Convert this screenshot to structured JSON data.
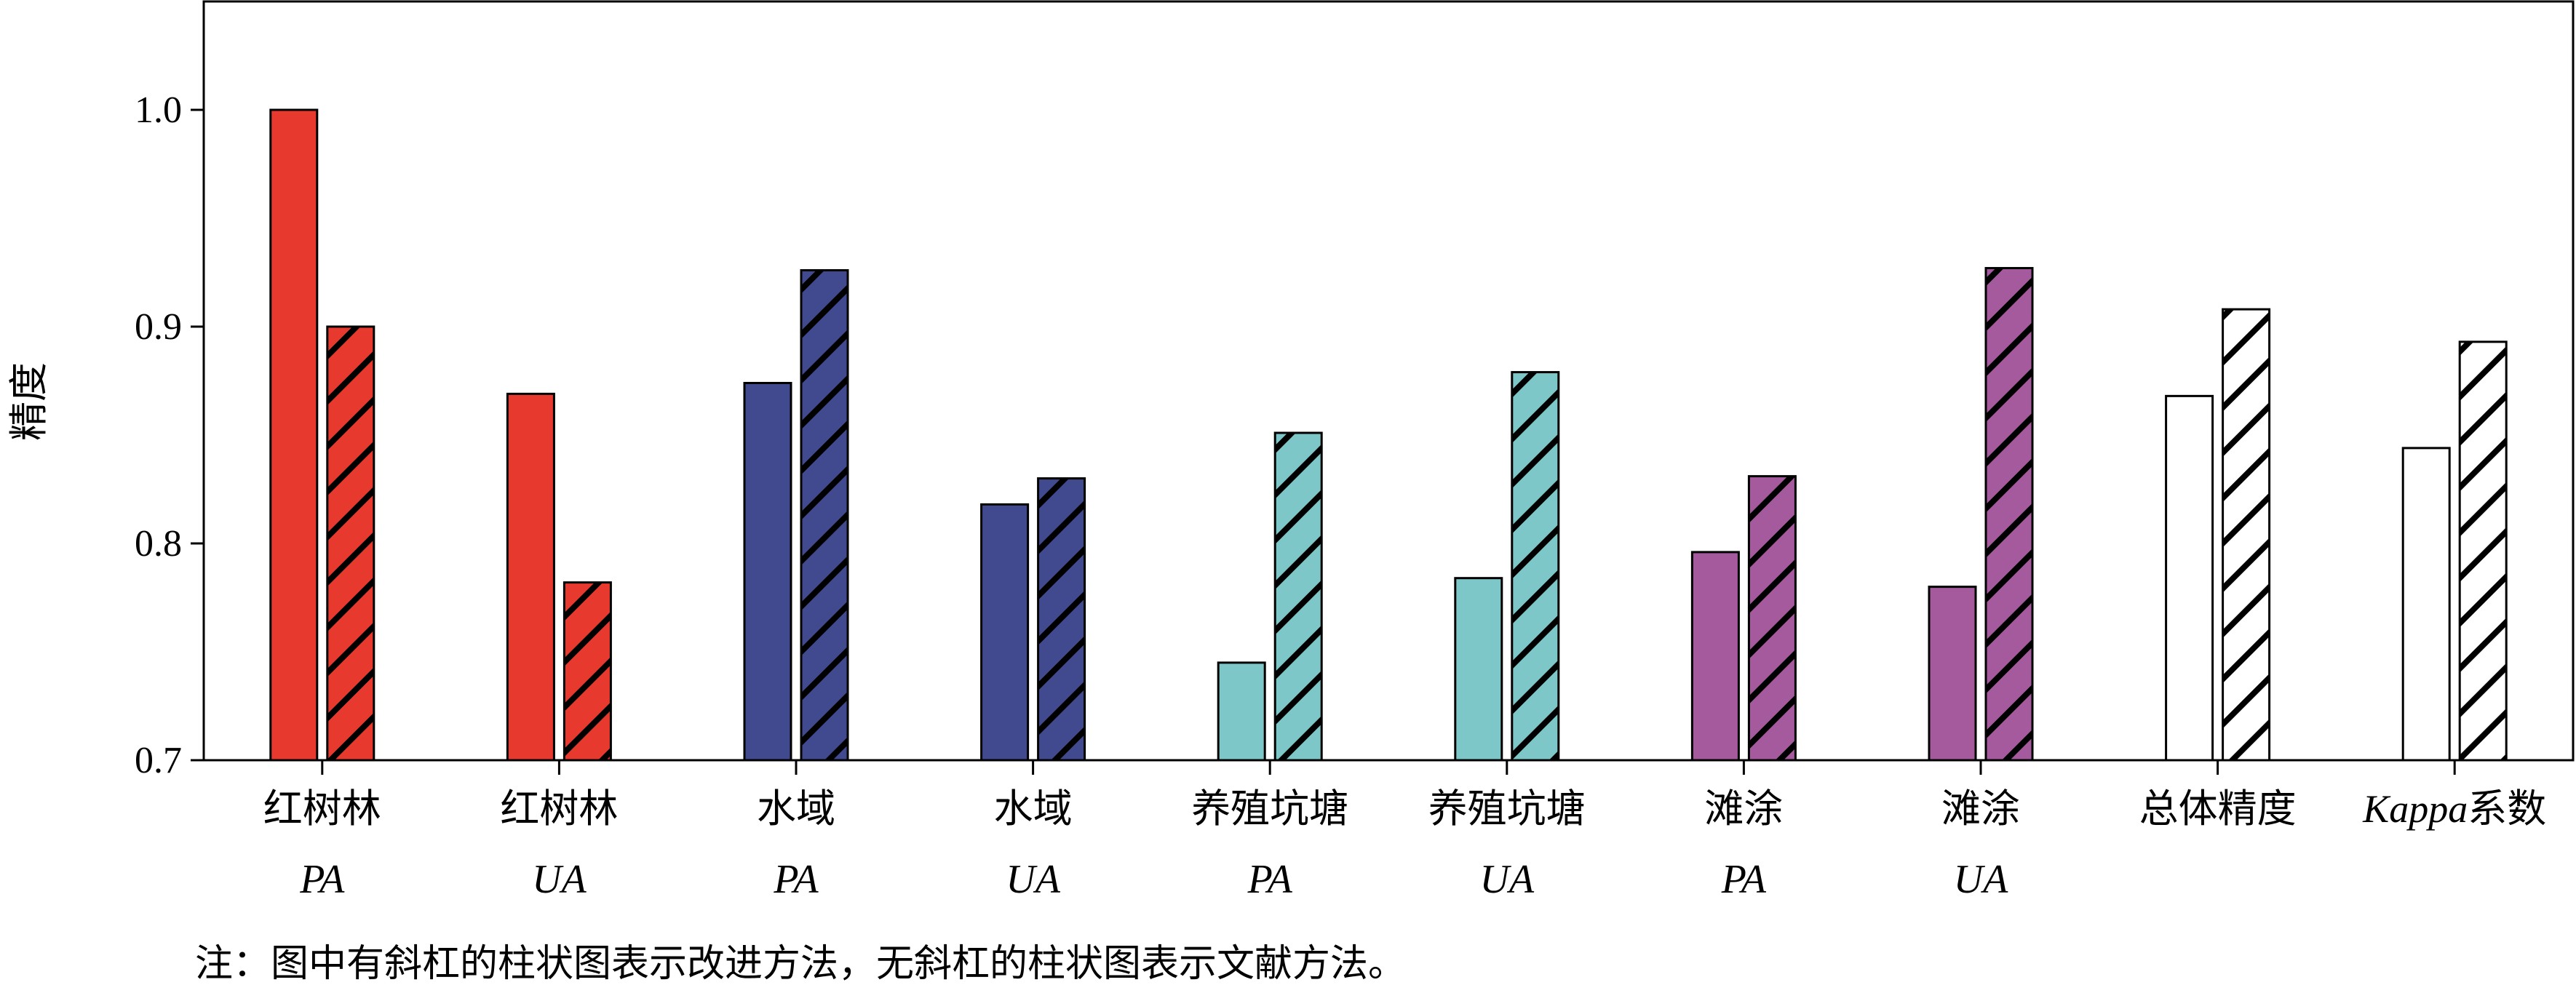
{
  "chart_data": {
    "type": "bar",
    "ylabel": "精度",
    "ylim": [
      0.7,
      1.05
    ],
    "yticks": [
      "0.7",
      "0.8",
      "0.9",
      "1.0"
    ],
    "grid": false,
    "categories": [
      {
        "label": "红树林",
        "sub": "PA",
        "color": "#e8392f"
      },
      {
        "label": "红树林",
        "sub": "UA",
        "color": "#e8392f"
      },
      {
        "label": "水域",
        "sub": "PA",
        "color": "#414a8e"
      },
      {
        "label": "水域",
        "sub": "UA",
        "color": "#414a8e"
      },
      {
        "label": "养殖坑塘",
        "sub": "PA",
        "color": "#7dc7c8"
      },
      {
        "label": "养殖坑塘",
        "sub": "UA",
        "color": "#7dc7c8"
      },
      {
        "label": "滩涂",
        "sub": "PA",
        "color": "#a65a9e"
      },
      {
        "label": "滩涂",
        "sub": "UA",
        "color": "#a65a9e"
      },
      {
        "label": "总体精度",
        "sub": "",
        "color": "#ffffff"
      },
      {
        "label_italic": "Kappa",
        "label": "系数",
        "sub": "",
        "color": "#ffffff"
      }
    ],
    "series": [
      {
        "hatched": false,
        "values": [
          1.0,
          0.869,
          0.874,
          0.818,
          0.745,
          0.784,
          0.796,
          0.78,
          0.868,
          0.844
        ]
      },
      {
        "hatched": true,
        "values": [
          0.9,
          0.782,
          0.926,
          0.83,
          0.851,
          0.879,
          0.831,
          0.927,
          0.908,
          0.893
        ]
      }
    ]
  },
  "note": "注：图中有斜杠的柱状图表示改进方法，无斜杠的柱状图表示文献方法。"
}
